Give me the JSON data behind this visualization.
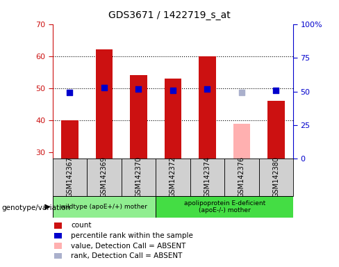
{
  "title": "GDS3671 / 1422719_s_at",
  "samples": [
    "GSM142367",
    "GSM142369",
    "GSM142370",
    "GSM142372",
    "GSM142374",
    "GSM142376",
    "GSM142380"
  ],
  "count_values": [
    40,
    62,
    54,
    53,
    60,
    null,
    46
  ],
  "count_absent": [
    null,
    null,
    null,
    null,
    null,
    39,
    null
  ],
  "percentile_values": [
    49,
    53,
    52,
    51,
    52,
    null,
    51
  ],
  "percentile_absent": [
    null,
    null,
    null,
    null,
    null,
    49,
    null
  ],
  "ylim_left": [
    28,
    70
  ],
  "ylim_right": [
    0,
    100
  ],
  "yticks_left": [
    30,
    40,
    50,
    60,
    70
  ],
  "yticks_right": [
    0,
    25,
    50,
    75,
    100
  ],
  "ytick_labels_right": [
    "0",
    "25",
    "50",
    "75",
    "100%"
  ],
  "bar_color": "#cc1111",
  "bar_absent_color": "#ffb0b0",
  "dot_color": "#0000cc",
  "dot_absent_color": "#aab0cc",
  "wildtype_samples": [
    "GSM142367",
    "GSM142369",
    "GSM142370"
  ],
  "apoE_samples": [
    "GSM142372",
    "GSM142374",
    "GSM142376",
    "GSM142380"
  ],
  "wildtype_label": "wildtype (apoE+/+) mother",
  "apoE_label": "apolipoprotein E-deficient\n(apoE-/-) mother",
  "genotype_label": "genotype/variation",
  "legend_items": [
    {
      "label": "count",
      "color": "#cc1111"
    },
    {
      "label": "percentile rank within the sample",
      "color": "#0000cc"
    },
    {
      "label": "value, Detection Call = ABSENT",
      "color": "#ffb0b0"
    },
    {
      "label": "rank, Detection Call = ABSENT",
      "color": "#aab0cc"
    }
  ],
  "bar_width": 0.5,
  "dot_size": 28,
  "axis_color_left": "#cc1111",
  "axis_color_right": "#0000cc"
}
